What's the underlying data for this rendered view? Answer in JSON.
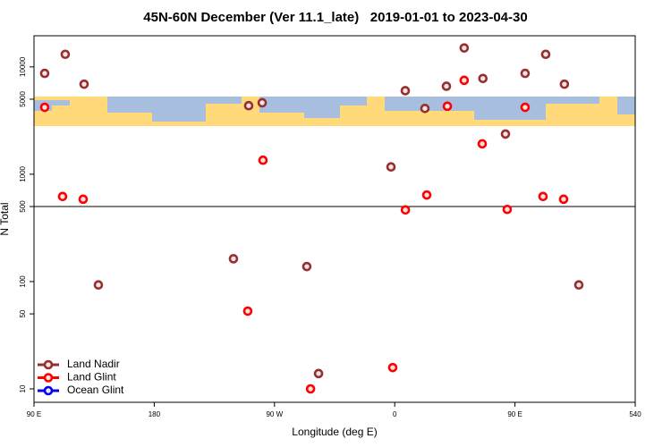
{
  "chart_data": {
    "type": "scatter",
    "title": "45N-60N December (Ver 11.1_late)   2019-01-01 to 2023-04-30",
    "xlabel": "Longitude (deg E)",
    "ylabel": "N Total",
    "xlim": [
      90,
      540
    ],
    "xticks": [
      {
        "value": 90,
        "label": "90 E"
      },
      180,
      {
        "value": 270,
        "label": "90 W"
      },
      {
        "value": 360,
        "label": "0"
      },
      {
        "value": 450,
        "label": "90 E"
      },
      540
    ],
    "ylim": [
      7.5,
      19500
    ],
    "yticks": [
      10,
      50,
      100,
      500,
      1000,
      5000,
      10000
    ],
    "log_y": true,
    "reference_line": 500,
    "legend": "lower left",
    "series": [
      {
        "name": "Land Nadir",
        "color": "#943030",
        "x": [
          98,
          113.4,
          127.5,
          138.2,
          239.3,
          250.7,
          260.8,
          294.2,
          303,
          357.2,
          367.9,
          382.6,
          398.7,
          412,
          426,
          442.9,
          457.6,
          473,
          487,
          497.8
        ],
        "values": [
          8700,
          13100,
          6900,
          93,
          163,
          4350,
          4630,
          138,
          13.9,
          1170,
          6000,
          4100,
          6600,
          15000,
          7800,
          2370,
          8700,
          13100,
          6900,
          93
        ]
      },
      {
        "name": "Land Glint",
        "color": "#ff0000",
        "x": [
          98,
          111.4,
          126.8,
          261.4,
          250,
          297,
          358.5,
          368,
          384,
          399.4,
          412,
          425.5,
          444.2,
          457.6,
          471,
          486.4
        ],
        "values": [
          4200,
          620,
          585,
          1350,
          53,
          10,
          15.8,
          465,
          640,
          4300,
          7500,
          1920,
          470,
          4200,
          620,
          585
        ]
      },
      {
        "name": "Ocean Glint",
        "color": "#0000ee",
        "x": [],
        "values": []
      }
    ]
  }
}
